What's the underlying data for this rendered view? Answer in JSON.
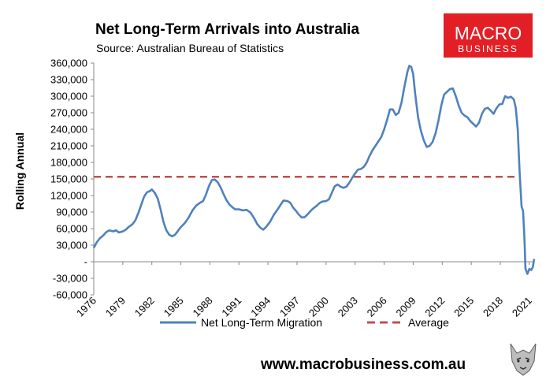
{
  "chart_data": {
    "type": "line",
    "title": "Net Long-Term Arrivals into Australia",
    "subtitle": "Source: Australian Bureau of Statistics",
    "ylabel": "Rolling Annual",
    "xlabel": "",
    "xlim": [
      1976,
      2021.5
    ],
    "ylim": [
      -60000,
      360000
    ],
    "y_ticks": [
      360000,
      330000,
      300000,
      270000,
      240000,
      210000,
      180000,
      150000,
      120000,
      90000,
      60000,
      30000,
      0,
      -30000,
      -60000
    ],
    "y_tick_labels": [
      "360,000",
      "330,000",
      "300,000",
      "270,000",
      "240,000",
      "210,000",
      "180,000",
      "150,000",
      "120,000",
      "90,000",
      "60,000",
      "30,000",
      "-",
      "-30,000",
      "-60,000"
    ],
    "x_ticks": [
      1976,
      1979,
      1982,
      1985,
      1988,
      1991,
      1994,
      1997,
      2000,
      2003,
      2006,
      2009,
      2012,
      2015,
      2018,
      2021
    ],
    "x_tick_labels": [
      "1976",
      "1979",
      "1982",
      "1985",
      "1988",
      "1991",
      "1994",
      "1997",
      "2000",
      "2003",
      "2006",
      "2009",
      "2012",
      "2015",
      "2018",
      "2021"
    ],
    "grid": false,
    "legend_position": "bottom",
    "series": [
      {
        "name": "Net Long-Term Migration",
        "color": "#4f81bd",
        "style": "solid",
        "points": [
          [
            1976.0,
            25000
          ],
          [
            1976.3,
            35000
          ],
          [
            1976.6,
            42000
          ],
          [
            1977.0,
            48000
          ],
          [
            1977.3,
            54000
          ],
          [
            1977.6,
            57000
          ],
          [
            1978.0,
            55000
          ],
          [
            1978.3,
            57000
          ],
          [
            1978.6,
            53000
          ],
          [
            1979.0,
            55000
          ],
          [
            1979.3,
            58000
          ],
          [
            1979.6,
            63000
          ],
          [
            1980.0,
            68000
          ],
          [
            1980.3,
            75000
          ],
          [
            1980.6,
            88000
          ],
          [
            1980.9,
            103000
          ],
          [
            1981.2,
            118000
          ],
          [
            1981.5,
            126000
          ],
          [
            1981.8,
            128000
          ],
          [
            1982.0,
            131000
          ],
          [
            1982.3,
            125000
          ],
          [
            1982.6,
            115000
          ],
          [
            1982.9,
            95000
          ],
          [
            1983.2,
            72000
          ],
          [
            1983.5,
            57000
          ],
          [
            1983.8,
            49000
          ],
          [
            1984.1,
            46000
          ],
          [
            1984.4,
            49000
          ],
          [
            1984.7,
            56000
          ],
          [
            1985.0,
            63000
          ],
          [
            1985.4,
            70000
          ],
          [
            1985.8,
            80000
          ],
          [
            1986.2,
            93000
          ],
          [
            1986.6,
            102000
          ],
          [
            1987.0,
            107000
          ],
          [
            1987.3,
            110000
          ],
          [
            1987.6,
            122000
          ],
          [
            1987.9,
            137000
          ],
          [
            1988.2,
            148000
          ],
          [
            1988.5,
            149000
          ],
          [
            1988.8,
            144000
          ],
          [
            1989.1,
            135000
          ],
          [
            1989.4,
            123000
          ],
          [
            1989.7,
            112000
          ],
          [
            1990.0,
            104000
          ],
          [
            1990.3,
            99000
          ],
          [
            1990.6,
            95000
          ],
          [
            1991.0,
            95000
          ],
          [
            1991.4,
            93000
          ],
          [
            1991.8,
            94000
          ],
          [
            1992.2,
            89000
          ],
          [
            1992.6,
            78000
          ],
          [
            1992.9,
            68000
          ],
          [
            1993.2,
            62000
          ],
          [
            1993.5,
            58000
          ],
          [
            1993.8,
            63000
          ],
          [
            1994.2,
            72000
          ],
          [
            1994.6,
            85000
          ],
          [
            1995.0,
            95000
          ],
          [
            1995.3,
            103000
          ],
          [
            1995.6,
            111000
          ],
          [
            1996.0,
            110000
          ],
          [
            1996.3,
            107000
          ],
          [
            1996.6,
            98000
          ],
          [
            1996.9,
            92000
          ],
          [
            1997.2,
            85000
          ],
          [
            1997.5,
            80000
          ],
          [
            1997.8,
            81000
          ],
          [
            1998.1,
            86000
          ],
          [
            1998.4,
            92000
          ],
          [
            1998.7,
            97000
          ],
          [
            1999.0,
            101000
          ],
          [
            1999.3,
            106000
          ],
          [
            1999.6,
            109000
          ],
          [
            2000.0,
            110000
          ],
          [
            2000.3,
            113000
          ],
          [
            2000.6,
            125000
          ],
          [
            2000.9,
            137000
          ],
          [
            2001.2,
            140000
          ],
          [
            2001.5,
            136000
          ],
          [
            2001.8,
            134000
          ],
          [
            2002.1,
            136000
          ],
          [
            2002.4,
            143000
          ],
          [
            2002.7,
            152000
          ],
          [
            2003.0,
            160000
          ],
          [
            2003.3,
            167000
          ],
          [
            2003.6,
            168000
          ],
          [
            2003.9,
            172000
          ],
          [
            2004.2,
            180000
          ],
          [
            2004.5,
            192000
          ],
          [
            2004.8,
            202000
          ],
          [
            2005.1,
            210000
          ],
          [
            2005.4,
            218000
          ],
          [
            2005.7,
            226000
          ],
          [
            2006.0,
            240000
          ],
          [
            2006.3,
            257000
          ],
          [
            2006.6,
            276000
          ],
          [
            2006.9,
            276000
          ],
          [
            2007.2,
            266000
          ],
          [
            2007.5,
            270000
          ],
          [
            2007.8,
            289000
          ],
          [
            2008.1,
            318000
          ],
          [
            2008.4,
            344000
          ],
          [
            2008.6,
            355000
          ],
          [
            2008.8,
            353000
          ],
          [
            2009.0,
            340000
          ],
          [
            2009.2,
            305000
          ],
          [
            2009.5,
            262000
          ],
          [
            2009.8,
            237000
          ],
          [
            2010.1,
            220000
          ],
          [
            2010.4,
            208000
          ],
          [
            2010.7,
            210000
          ],
          [
            2011.0,
            217000
          ],
          [
            2011.3,
            232000
          ],
          [
            2011.6,
            255000
          ],
          [
            2011.9,
            283000
          ],
          [
            2012.2,
            303000
          ],
          [
            2012.5,
            308000
          ],
          [
            2012.8,
            313000
          ],
          [
            2013.1,
            314000
          ],
          [
            2013.4,
            300000
          ],
          [
            2013.7,
            283000
          ],
          [
            2014.0,
            270000
          ],
          [
            2014.3,
            265000
          ],
          [
            2014.6,
            262000
          ],
          [
            2014.9,
            255000
          ],
          [
            2015.2,
            250000
          ],
          [
            2015.5,
            245000
          ],
          [
            2015.8,
            252000
          ],
          [
            2016.1,
            268000
          ],
          [
            2016.4,
            277000
          ],
          [
            2016.7,
            279000
          ],
          [
            2017.0,
            274000
          ],
          [
            2017.3,
            268000
          ],
          [
            2017.6,
            278000
          ],
          [
            2017.9,
            285000
          ],
          [
            2018.2,
            286000
          ],
          [
            2018.5,
            300000
          ],
          [
            2018.8,
            297000
          ],
          [
            2019.1,
            299000
          ],
          [
            2019.4,
            294000
          ],
          [
            2019.6,
            278000
          ],
          [
            2019.8,
            240000
          ],
          [
            2020.0,
            160000
          ],
          [
            2020.2,
            100000
          ],
          [
            2020.35,
            92000
          ],
          [
            2020.5,
            40000
          ],
          [
            2020.6,
            -12000
          ],
          [
            2020.8,
            -22000
          ],
          [
            2021.0,
            -13000
          ],
          [
            2021.2,
            -15000
          ],
          [
            2021.35,
            -10000
          ],
          [
            2021.5,
            5000
          ]
        ]
      },
      {
        "name": "Average",
        "color": "#c0504d",
        "style": "dashed",
        "value": 154000
      }
    ]
  },
  "logo": {
    "line1": "MACRO",
    "line2": "BUSINESS",
    "bg_color": "#e31f26"
  },
  "footer": {
    "url": "www.macrobusiness.com.au"
  }
}
